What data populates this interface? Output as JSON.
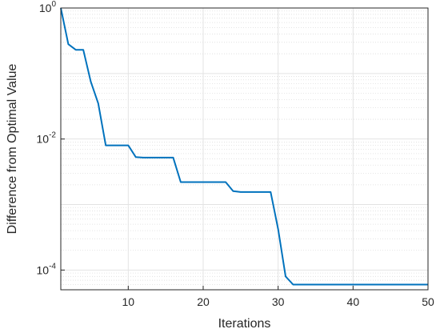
{
  "chart_data": {
    "type": "line",
    "xlabel": "Iterations",
    "ylabel": "Difference from Optimal Value",
    "xlim": [
      1,
      50
    ],
    "ylim": [
      5e-05,
      1
    ],
    "yscale": "log",
    "grid": true,
    "x_ticks": [
      10,
      20,
      30,
      40,
      50
    ],
    "x_tick_labels": [
      "10",
      "20",
      "30",
      "40",
      "50"
    ],
    "y_ticks": [
      1,
      0.01,
      0.0001
    ],
    "y_tick_labels": [
      {
        "base": "10",
        "exp": "0"
      },
      {
        "base": "10",
        "exp": "-2"
      },
      {
        "base": "10",
        "exp": "-4"
      }
    ],
    "line_color": "#0072BD",
    "series": [
      {
        "x": [
          1,
          2,
          3,
          4,
          5,
          6,
          7,
          8,
          9,
          10,
          11,
          12,
          13,
          14,
          15,
          16,
          17,
          18,
          19,
          20,
          21,
          22,
          23,
          24,
          25,
          26,
          27,
          28,
          29,
          30,
          31,
          32,
          33,
          34,
          35,
          36,
          37,
          38,
          39,
          40,
          41,
          42,
          43,
          44,
          45,
          46,
          47,
          48,
          49,
          50
        ],
        "y": [
          1,
          0.28,
          0.23,
          0.23,
          0.075,
          0.035,
          0.008,
          0.008,
          0.008,
          0.008,
          0.0053,
          0.0052,
          0.0052,
          0.0052,
          0.0052,
          0.0052,
          0.0022,
          0.0022,
          0.0022,
          0.0022,
          0.0022,
          0.0022,
          0.0022,
          0.0016,
          0.00155,
          0.00155,
          0.00155,
          0.00155,
          0.00155,
          0.00042,
          8e-05,
          6e-05,
          6e-05,
          6e-05,
          6e-05,
          6e-05,
          6e-05,
          6e-05,
          6e-05,
          6e-05,
          6e-05,
          6e-05,
          6e-05,
          6e-05,
          6e-05,
          6e-05,
          6e-05,
          6e-05,
          6e-05,
          6e-05
        ]
      }
    ]
  }
}
